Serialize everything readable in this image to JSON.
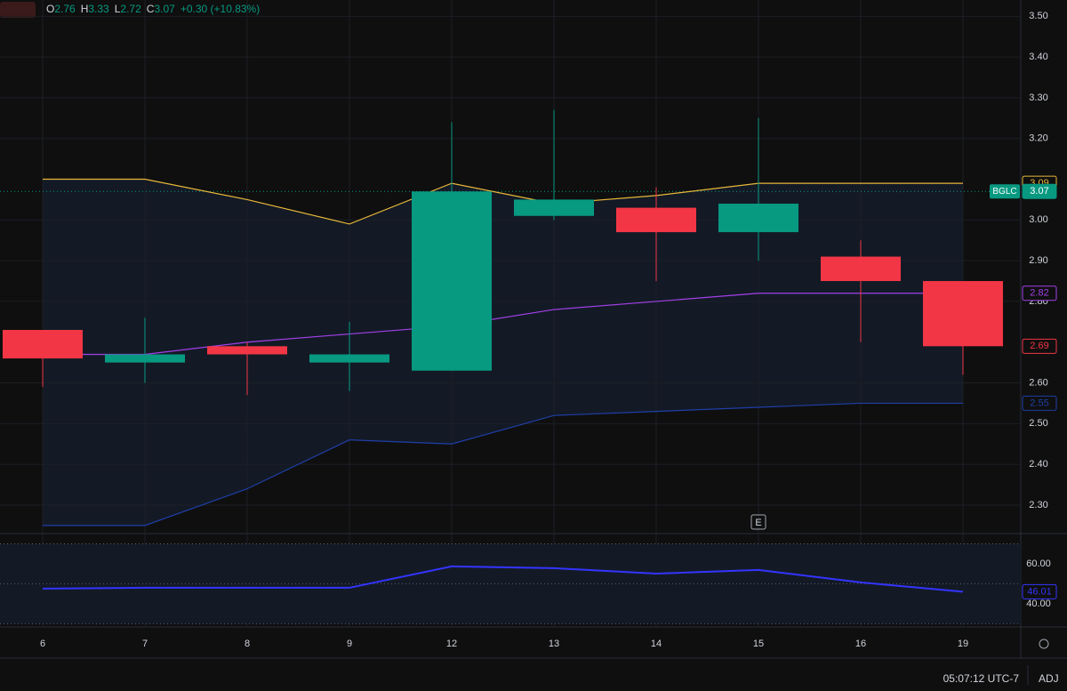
{
  "chart_data": {
    "type": "candlestick",
    "header": {
      "fields": [
        {
          "label": "O",
          "value": "2.76"
        },
        {
          "label": "H",
          "value": "3.33"
        },
        {
          "label": "L",
          "value": "2.72"
        },
        {
          "label": "C",
          "value": "3.07"
        }
      ],
      "change": "+0.30 (+10.83%)"
    },
    "categories": [
      "6",
      "7",
      "8",
      "9",
      "12",
      "13",
      "14",
      "15",
      "16",
      "19"
    ],
    "open": [
      2.73,
      2.65,
      2.69,
      2.65,
      2.63,
      3.01,
      3.03,
      2.97,
      2.91,
      2.85
    ],
    "high": [
      2.73,
      2.76,
      2.7,
      2.75,
      3.24,
      3.27,
      3.08,
      3.25,
      2.95,
      2.85
    ],
    "low": [
      2.59,
      2.6,
      2.57,
      2.58,
      2.63,
      3.0,
      2.85,
      2.9,
      2.7,
      2.62
    ],
    "close": [
      2.66,
      2.67,
      2.67,
      2.67,
      3.07,
      3.05,
      2.97,
      3.04,
      2.85,
      2.69
    ],
    "up_color": "#089981",
    "down_color": "#f23645",
    "last_close_label": "2.69",
    "lines": [
      {
        "color": "#e8b73a",
        "values": [
          3.1,
          3.1,
          3.05,
          2.99,
          3.09,
          3.04,
          3.06,
          3.09,
          3.09,
          3.09
        ],
        "value_label": "3.09"
      },
      {
        "color": "#a340e8",
        "values": [
          2.67,
          2.67,
          2.7,
          2.72,
          2.74,
          2.78,
          2.8,
          2.82,
          2.82,
          2.82
        ],
        "value_label": "2.82"
      },
      {
        "color": "#1f3fa8",
        "values": [
          2.25,
          2.25,
          2.34,
          2.46,
          2.45,
          2.52,
          2.53,
          2.54,
          2.55,
          2.55
        ],
        "value_label": "2.55"
      }
    ],
    "band_fill": "#131a26",
    "price_tag": {
      "symbol": "BGLC",
      "value": 3.07,
      "color": "#089981"
    },
    "event_marker": "E",
    "ylim": [
      2.23,
      3.54
    ],
    "yticks": [
      {
        "value": 2.3,
        "label": "2.30"
      },
      {
        "value": 2.4,
        "label": "2.40"
      },
      {
        "value": 2.5,
        "label": "2.50"
      },
      {
        "value": 2.6,
        "label": "2.60"
      },
      {
        "value": 2.8,
        "label": "2.80"
      },
      {
        "value": 2.9,
        "label": "2.90"
      },
      {
        "value": 3.0,
        "label": "3.00"
      },
      {
        "value": 3.2,
        "label": "3.20"
      },
      {
        "value": 3.3,
        "label": "3.30"
      },
      {
        "value": 3.4,
        "label": "3.40"
      },
      {
        "value": 3.5,
        "label": "3.50"
      }
    ],
    "oscillator": {
      "color": "#3434ff",
      "values": [
        47.6,
        48,
        48,
        48,
        58.7,
        57.8,
        55.1,
        56.9,
        50.7,
        46.01
      ],
      "value_labels": [
        null,
        null,
        null,
        null,
        null,
        null,
        null,
        null,
        null,
        "46.01"
      ],
      "levels": [
        70,
        50,
        30
      ],
      "ylim": [
        28.4,
        75.1
      ],
      "yticks": [
        {
          "value": 40,
          "label": "40.00"
        },
        {
          "value": 60,
          "label": "60.00"
        }
      ]
    },
    "footer": {
      "time": "05:07:12 UTC-7",
      "adj": "ADJ"
    }
  }
}
